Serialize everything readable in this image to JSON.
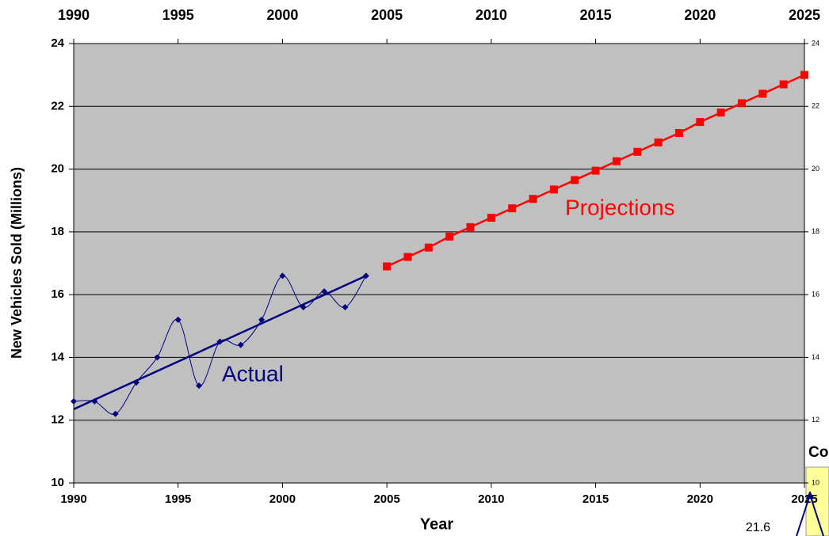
{
  "chart_data": {
    "type": "line",
    "xlabel": "Year",
    "ylabel": "New Vehicles Sold (Millions)",
    "xlim": [
      1990,
      2025
    ],
    "xticks": [
      1990,
      1995,
      2000,
      2005,
      2010,
      2015,
      2020,
      2025
    ],
    "x2ticks": [
      1990,
      1995,
      2000,
      2005,
      2010,
      2015,
      2020,
      2025
    ],
    "ylim": [
      10,
      24
    ],
    "yticks": [
      10,
      12,
      14,
      16,
      18,
      20,
      22,
      24
    ],
    "y2ticks": [
      10,
      12,
      14,
      16,
      18,
      20,
      22,
      24
    ],
    "grid": true,
    "plot_color": "#c0c0c0",
    "series": [
      {
        "name": "Actual",
        "color": "#000080",
        "marker": "diamond",
        "smooth": true,
        "x": [
          1990,
          1991,
          1992,
          1993,
          1994,
          1995,
          1996,
          1997,
          1998,
          1999,
          2000,
          2001,
          2002,
          2003,
          2004
        ],
        "values": [
          12.6,
          12.6,
          12.2,
          13.2,
          14.0,
          15.2,
          13.1,
          14.5,
          14.4,
          15.2,
          16.6,
          15.6,
          16.1,
          15.6,
          16.6
        ]
      },
      {
        "name": "Projections",
        "color": "#ff0000",
        "marker": "square",
        "smooth": false,
        "x": [
          2005,
          2006,
          2007,
          2008,
          2009,
          2010,
          2011,
          2012,
          2013,
          2014,
          2015,
          2016,
          2017,
          2018,
          2019,
          2020,
          2021,
          2022,
          2023,
          2024,
          2025
        ],
        "values": [
          16.9,
          17.2,
          17.5,
          17.85,
          18.15,
          18.45,
          18.75,
          19.05,
          19.35,
          19.65,
          19.95,
          20.25,
          20.55,
          20.85,
          21.15,
          21.5,
          21.8,
          22.1,
          22.4,
          22.7,
          23.0
        ]
      }
    ],
    "trend": {
      "color": "#000080",
      "x": [
        1990,
        2004
      ],
      "values": [
        12.35,
        16.6
      ]
    },
    "fragments": {
      "heading": "Co",
      "value": 21.6
    }
  }
}
